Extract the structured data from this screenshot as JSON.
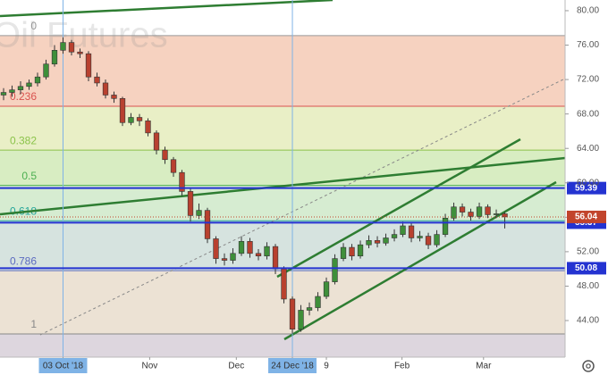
{
  "chart_data": {
    "type": "candlestick",
    "title": "Oil Futures",
    "open": [
      70.2,
      70.5,
      70.8,
      71.2,
      71.6,
      72.3,
      73.8,
      75.4,
      76.3,
      75.2,
      75.0,
      72.3,
      71.6,
      70.2,
      69.8,
      67.0,
      67.6,
      67.2,
      65.8,
      63.8,
      62.7,
      61.2,
      59.0,
      56.2,
      56.8,
      53.5,
      51.2,
      51.0,
      51.8,
      53.2,
      51.8,
      51.5,
      52.6,
      50.0,
      46.5,
      43.0,
      45.2,
      45.5,
      46.8,
      48.5,
      51.2,
      52.5,
      51.5,
      52.8,
      53.3,
      53.0,
      53.6,
      54.0,
      55.0,
      53.6,
      53.8,
      52.8,
      54.0,
      55.9,
      57.2,
      56.6,
      56.1,
      57.2,
      56.3,
      56.4
    ],
    "high": [
      71.0,
      71.3,
      71.8,
      72.0,
      72.8,
      74.3,
      76.0,
      76.9,
      76.6,
      75.6,
      75.3,
      72.8,
      72.0,
      70.6,
      70.0,
      68.1,
      68.0,
      67.5,
      66.1,
      64.2,
      63.0,
      61.5,
      59.3,
      57.6,
      57.1,
      53.8,
      51.8,
      52.4,
      53.8,
      53.6,
      52.3,
      53.1,
      52.9,
      50.3,
      46.8,
      45.8,
      46.1,
      47.3,
      49.0,
      51.7,
      53.0,
      52.9,
      53.3,
      53.9,
      53.8,
      54.1,
      54.6,
      55.5,
      55.4,
      54.4,
      54.2,
      54.5,
      56.4,
      57.7,
      57.6,
      57.0,
      57.7,
      57.5,
      56.9,
      56.6
    ],
    "low": [
      69.6,
      70.0,
      70.3,
      70.8,
      71.2,
      72.0,
      73.5,
      75.0,
      74.8,
      74.5,
      71.8,
      71.2,
      69.8,
      69.3,
      66.6,
      66.7,
      66.6,
      65.4,
      63.3,
      62.2,
      60.7,
      58.5,
      55.5,
      55.8,
      53.0,
      50.6,
      50.4,
      50.6,
      51.5,
      51.3,
      51.0,
      51.1,
      49.4,
      46.0,
      42.5,
      42.7,
      44.6,
      45.1,
      46.5,
      48.2,
      50.9,
      51.0,
      51.2,
      52.4,
      52.5,
      52.7,
      53.2,
      53.7,
      53.1,
      53.2,
      52.3,
      52.5,
      53.7,
      55.6,
      56.1,
      55.6,
      55.8,
      55.9,
      55.9,
      54.7
    ],
    "close": [
      70.5,
      70.8,
      71.2,
      71.6,
      72.3,
      73.8,
      75.4,
      76.3,
      75.2,
      75.0,
      72.3,
      71.6,
      70.2,
      69.8,
      67.0,
      67.6,
      67.2,
      65.8,
      63.8,
      62.7,
      61.2,
      59.0,
      56.2,
      56.8,
      53.5,
      51.2,
      51.0,
      51.8,
      53.2,
      51.8,
      51.5,
      52.6,
      50.0,
      46.5,
      43.0,
      45.2,
      45.5,
      46.8,
      48.5,
      51.2,
      52.5,
      51.5,
      52.8,
      53.3,
      53.0,
      53.6,
      54.0,
      55.0,
      53.6,
      53.8,
      52.8,
      54.0,
      55.9,
      57.2,
      56.6,
      56.1,
      57.2,
      56.3,
      56.4,
      56.04
    ],
    "up_color": "#3f8f3a",
    "down_color": "#b8412f",
    "xlim": [
      -0.42,
      66.1
    ],
    "ylim": [
      39.75,
      81.24
    ],
    "xticks": [
      {
        "value": 7,
        "label": "03 Oct '18"
      },
      {
        "value": 17.2,
        "label": "Nov"
      },
      {
        "value": 27.4,
        "label": "Dec"
      },
      {
        "value": 34,
        "label": "24 Dec '18"
      },
      {
        "value": 38,
        "label": "9"
      },
      {
        "value": 46.9,
        "label": "Feb"
      },
      {
        "value": 56.5,
        "label": "Mar"
      }
    ],
    "highlighted_xticks": [
      0,
      3
    ],
    "yticks": [
      {
        "value": 44,
        "label": "44.00"
      },
      {
        "value": 48,
        "label": "48.00"
      },
      {
        "value": 52,
        "label": "52.00"
      },
      {
        "value": 56,
        "label": "56.00"
      },
      {
        "value": 60,
        "label": "60.00"
      },
      {
        "value": 64,
        "label": "64.00"
      },
      {
        "value": 68,
        "label": "68.00"
      },
      {
        "value": 72,
        "label": "72.00"
      },
      {
        "value": 76,
        "label": "76.00"
      },
      {
        "value": 80,
        "label": "80.00"
      }
    ],
    "fib_levels": [
      {
        "label": "0",
        "value": 77.1,
        "color": "#999999",
        "fill": "#f6d2c0"
      },
      {
        "label": "0.236",
        "value": 68.9,
        "color": "#d9534f",
        "fill": "#e9efc6"
      },
      {
        "label": "0.382",
        "value": 63.8,
        "color": "#8bc34a",
        "fill": "#d8edc2"
      },
      {
        "label": "0.5",
        "value": 59.7,
        "color": "#4caf50",
        "fill": "#d6ecd1"
      },
      {
        "label": "0.618",
        "value": 55.6,
        "color": "#26a69a",
        "fill": "#d6e3df"
      },
      {
        "label": "0.786",
        "value": 49.8,
        "color": "#5c6bc0",
        "fill": "#ece2d4"
      },
      {
        "label": "1",
        "value": 42.45,
        "color": "#888888",
        "fill": "#ddd6de"
      }
    ],
    "price_lines": [
      {
        "value": 59.39,
        "color": "#2433d1"
      },
      {
        "value": 55.37,
        "color": "#2433d1"
      },
      {
        "value": 50.08,
        "color": "#2433d1"
      }
    ],
    "last_price": {
      "value": 56.04,
      "color": "#c2442c"
    }
  }
}
